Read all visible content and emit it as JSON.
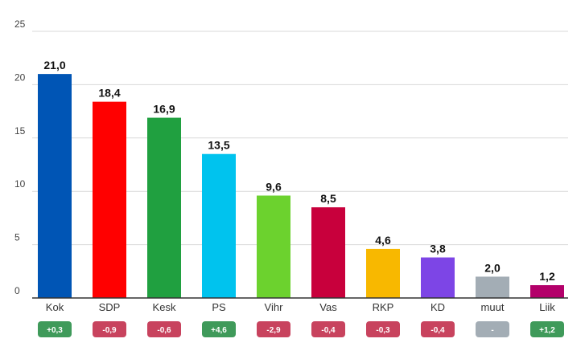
{
  "chart_data": {
    "type": "bar",
    "categories": [
      "Kok",
      "SDP",
      "Kesk",
      "PS",
      "Vihr",
      "Vas",
      "RKP",
      "KD",
      "muut",
      "Liik"
    ],
    "values": [
      21.0,
      18.4,
      16.9,
      13.5,
      9.6,
      8.5,
      4.6,
      3.8,
      2.0,
      1.2
    ],
    "value_labels": [
      "21,0",
      "18,4",
      "16,9",
      "13,5",
      "9,6",
      "8,5",
      "4,6",
      "3,8",
      "2,0",
      "1,2"
    ],
    "bar_colors": [
      "#0055b5",
      "#ff0000",
      "#20a040",
      "#00c3ee",
      "#6cd22e",
      "#c8003c",
      "#f8b800",
      "#7d45e6",
      "#a3adb5",
      "#b3006a"
    ],
    "changes": [
      "+0,3",
      "-0,9",
      "-0,6",
      "+4,6",
      "-2,9",
      "-0,4",
      "-0,3",
      "-0,4",
      "-",
      "+1,2"
    ],
    "change_colors": [
      "#3f9a5a",
      "#c8435e",
      "#c8435e",
      "#3f9a5a",
      "#c8435e",
      "#c8435e",
      "#c8435e",
      "#c8435e",
      "#a3adb5",
      "#3f9a5a"
    ],
    "yticks": [
      0,
      5,
      10,
      15,
      20,
      25
    ],
    "ylim": [
      0,
      25
    ],
    "grid": true,
    "title": "",
    "xlabel": "",
    "ylabel": ""
  }
}
